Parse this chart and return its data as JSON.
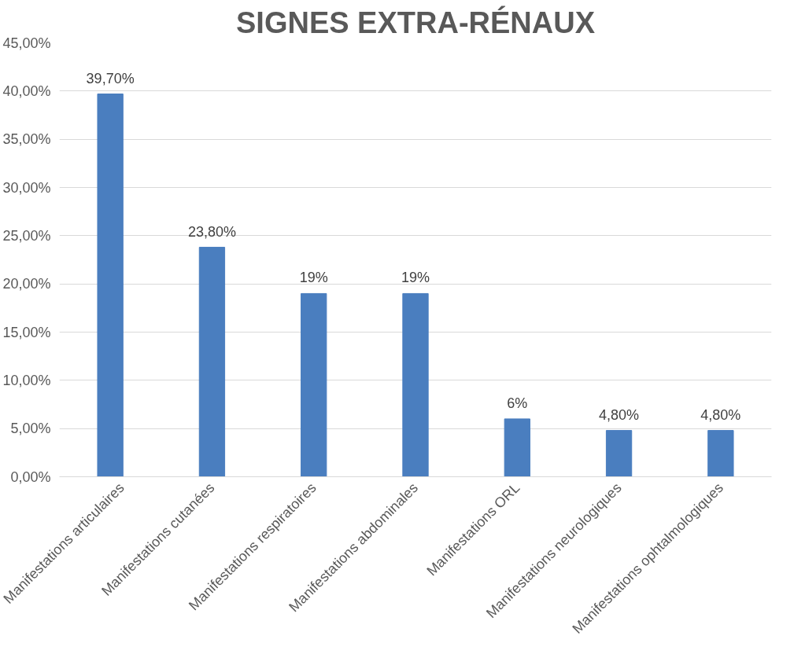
{
  "chart_data": {
    "type": "bar",
    "title": "SIGNES EXTRA-RÉNAUX",
    "categories": [
      "Manifestations articulaires",
      "Manifestations cutanées",
      "Manifestations respiratoires",
      "Manifestations abdominales",
      "Manifestations ORL",
      "Manifestations neurologiques",
      "Manifestations ophtalmologiques"
    ],
    "values": [
      39.7,
      23.8,
      19,
      19,
      6,
      4.8,
      4.8
    ],
    "value_labels": [
      "39,70%",
      "23,80%",
      "19%",
      "19%",
      "6%",
      "4,80%",
      "4,80%"
    ],
    "color": "#4a7ebf",
    "ylim": [
      0,
      45
    ],
    "yticks": [
      {
        "value": 0,
        "label": "0,00%"
      },
      {
        "value": 5,
        "label": "5,00%"
      },
      {
        "value": 10,
        "label": "10,00%"
      },
      {
        "value": 15,
        "label": "15,00%"
      },
      {
        "value": 20,
        "label": "20,00%"
      },
      {
        "value": 25,
        "label": "25,00%"
      },
      {
        "value": 30,
        "label": "30,00%"
      },
      {
        "value": 35,
        "label": "35,00%"
      },
      {
        "value": 40,
        "label": "40,00%"
      },
      {
        "value": 45,
        "label": "45,00%"
      }
    ],
    "grid": "y"
  }
}
